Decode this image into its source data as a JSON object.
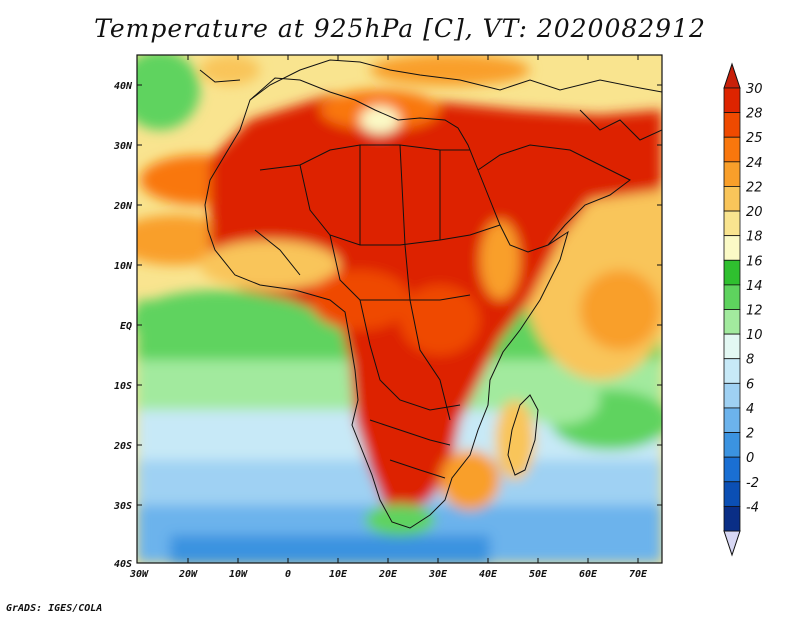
{
  "title": "Temperature at 925hPa [C], VT: 2020082912",
  "footer": "GrADS: IGES/COLA",
  "axes": {
    "lat_ticks": [
      "40N",
      "30N",
      "20N",
      "10N",
      "EQ",
      "10S",
      "20S",
      "30S",
      "40S"
    ],
    "lon_ticks": [
      "30W",
      "20W",
      "10W",
      "0",
      "10E",
      "20E",
      "30E",
      "40E",
      "50E",
      "60E",
      "70E"
    ]
  },
  "colorbar": {
    "levels": [
      {
        "label": "30",
        "color": "#dd2400"
      },
      {
        "label": "28",
        "color": "#ef4a00"
      },
      {
        "label": "25",
        "color": "#f9770d"
      },
      {
        "label": "24",
        "color": "#f99f2a"
      },
      {
        "label": "22",
        "color": "#f9c55a"
      },
      {
        "label": "20",
        "color": "#f9e48f"
      },
      {
        "label": "18",
        "color": "#fbfac6"
      },
      {
        "label": "16",
        "color": "#2fc02f"
      },
      {
        "label": "14",
        "color": "#5ed35e"
      },
      {
        "label": "12",
        "color": "#a2ea9e"
      },
      {
        "label": "10",
        "color": "#e3f8f3"
      },
      {
        "label": "8",
        "color": "#c7e9f7"
      },
      {
        "label": "6",
        "color": "#9fd1f3"
      },
      {
        "label": "4",
        "color": "#6cb3ec"
      },
      {
        "label": "2",
        "color": "#3b93e0"
      },
      {
        "label": "0",
        "color": "#1a6fd3"
      },
      {
        "label": "-2",
        "color": "#0b4fb4"
      },
      {
        "label": "-4",
        "color": "#0a2e86"
      }
    ],
    "top_cap_color": "#c8200a",
    "bottom_cap_color": "#d8d8f4"
  }
}
